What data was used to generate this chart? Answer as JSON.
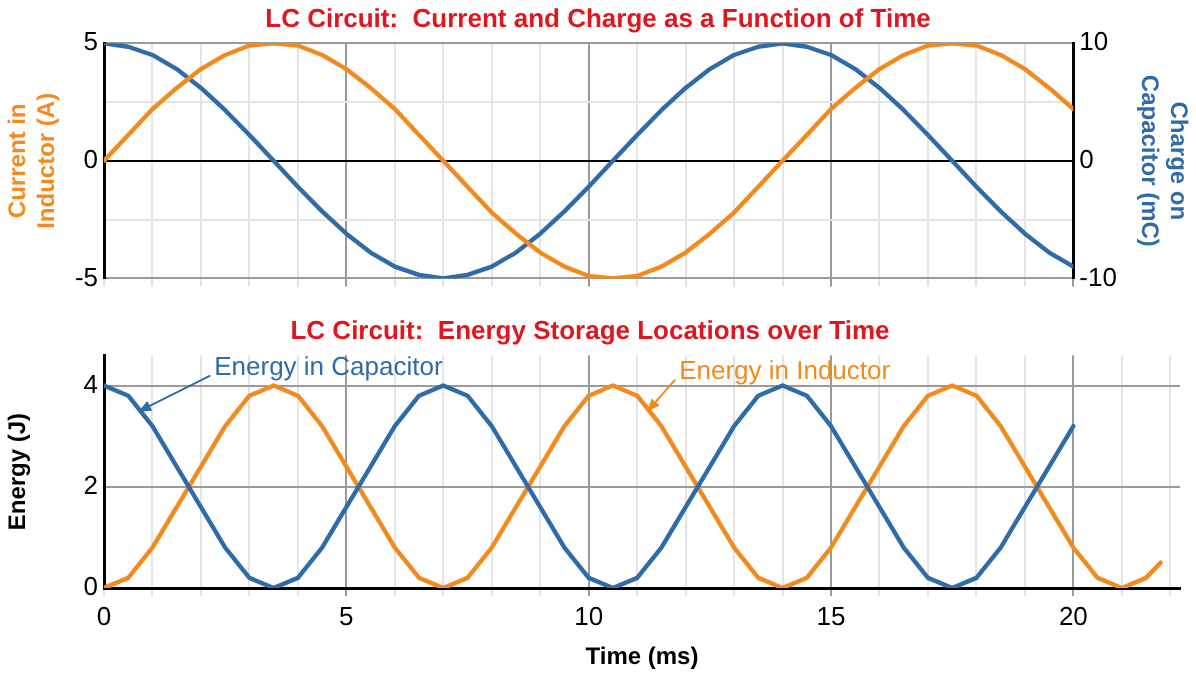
{
  "chart_data": [
    {
      "type": "line",
      "title": "LC Circuit:  Current and Charge as a Function of Time",
      "ylabel": "Current in\nInductor (A)",
      "y2label": "Charge on\nCapacitor (mC)",
      "x": [
        0,
        0.5,
        1,
        1.5,
        2,
        2.5,
        3,
        3.5,
        4,
        4.5,
        5,
        5.5,
        6,
        6.5,
        7,
        7.5,
        8,
        8.5,
        9,
        9.5,
        10,
        10.5,
        11,
        11.5,
        12,
        12.5,
        13,
        13.5,
        14,
        14.5,
        15,
        15.5,
        16,
        16.5,
        17,
        17.5,
        18,
        18.5,
        19,
        19.5,
        20
      ],
      "series": [
        {
          "color": "#f28a1e",
          "values": [
            0,
            1.1,
            2.2,
            3.1,
            3.9,
            4.5,
            4.9,
            5,
            4.9,
            4.5,
            3.9,
            3.1,
            2.2,
            1.1,
            0,
            -1.1,
            -2.2,
            -3.1,
            -3.9,
            -4.5,
            -4.9,
            -5,
            -4.9,
            -4.5,
            -3.9,
            -3.1,
            -2.2,
            -1.1,
            0,
            1.1,
            2.2,
            3.1,
            3.9,
            4.5,
            4.9,
            5,
            4.9,
            4.5,
            3.9,
            3.1,
            2.2
          ]
        },
        {
          "color": "#2f6aa9",
          "axis": "y2",
          "values": [
            10,
            9.7,
            9,
            7.8,
            6.2,
            4.3,
            2.2,
            0,
            -2.2,
            -4.3,
            -6.2,
            -7.8,
            -9,
            -9.7,
            -10,
            -9.7,
            -9,
            -7.8,
            -6.2,
            -4.3,
            -2.2,
            0,
            2.2,
            4.3,
            6.2,
            7.8,
            9,
            9.7,
            10,
            9.7,
            9,
            7.8,
            6.2,
            4.3,
            2.2,
            0,
            -2.2,
            -4.3,
            -6.2,
            -7.8,
            -9
          ]
        }
      ],
      "xlim": [
        0,
        20
      ],
      "xticks": [
        0,
        {
          "value": 1,
          "label": null
        },
        {
          "value": 2,
          "label": null
        },
        {
          "value": 3,
          "label": null
        },
        {
          "value": 4,
          "label": null
        },
        5,
        {
          "value": 6,
          "label": null
        },
        {
          "value": 7,
          "label": null
        },
        {
          "value": 8,
          "label": null
        },
        {
          "value": 9,
          "label": null
        },
        10,
        {
          "value": 11,
          "label": null
        },
        {
          "value": 12,
          "label": null
        },
        {
          "value": 13,
          "label": null
        },
        {
          "value": 14,
          "label": null
        },
        15,
        {
          "value": 16,
          "label": null
        },
        {
          "value": 17,
          "label": null
        },
        {
          "value": 18,
          "label": null
        },
        {
          "value": 19,
          "label": null
        },
        20
      ],
      "ylim": [
        -5,
        5
      ],
      "yticks": [
        -5,
        {
          "value": -2.5,
          "label": null
        },
        0,
        {
          "value": 2.5,
          "label": null
        },
        5
      ],
      "y2lim": [
        -10,
        10
      ],
      "y2ticks": [
        -10,
        0,
        10
      ],
      "tick_labels": "y",
      "grid": true,
      "legend": false,
      "marker": "none",
      "line_style": "solid"
    },
    {
      "type": "line",
      "title": "LC Circuit:  Energy Storage Locations over Time",
      "xlabel": "Time (ms)",
      "ylabel": "Energy (J)",
      "x": [
        0,
        0.5,
        1,
        1.5,
        2,
        2.5,
        3,
        3.5,
        4,
        4.5,
        5,
        5.5,
        6,
        6.5,
        7,
        7.5,
        8,
        8.5,
        9,
        9.5,
        10,
        10.5,
        11,
        11.5,
        12,
        12.5,
        13,
        13.5,
        14,
        14.5,
        15,
        15.5,
        16,
        16.5,
        17,
        17.5,
        18,
        18.5,
        19,
        19.5,
        20
      ],
      "series": [
        {
          "name": "Energy in Capacitor",
          "color": "#2f6aa9",
          "values": [
            4,
            3.8,
            3.2,
            2.4,
            1.6,
            0.8,
            0.2,
            0,
            0.2,
            0.8,
            1.6,
            2.4,
            3.2,
            3.8,
            4,
            3.8,
            3.2,
            2.4,
            1.6,
            0.8,
            0.2,
            0,
            0.2,
            0.8,
            1.6,
            2.4,
            3.2,
            3.8,
            4,
            3.8,
            3.2,
            2.4,
            1.6,
            0.8,
            0.2,
            0,
            0.2,
            0.8,
            1.6,
            2.4,
            3.2
          ]
        },
        {
          "name": "Energy in Inductor",
          "color": "#f28a1e",
          "x": [
            0,
            0.5,
            1,
            1.5,
            2,
            2.5,
            3,
            3.5,
            4,
            4.5,
            5,
            5.5,
            6,
            6.5,
            7,
            7.5,
            8,
            8.5,
            9,
            9.5,
            10,
            10.5,
            11,
            11.5,
            12,
            12.5,
            13,
            13.5,
            14,
            14.5,
            15,
            15.5,
            16,
            16.5,
            17,
            17.5,
            18,
            18.5,
            19,
            19.5,
            20,
            20.5,
            21,
            21.5,
            21.8
          ],
          "values": [
            0,
            0.2,
            0.8,
            1.6,
            2.4,
            3.2,
            3.8,
            4,
            3.8,
            3.2,
            2.4,
            1.6,
            0.8,
            0.2,
            0,
            0.2,
            0.8,
            1.6,
            2.4,
            3.2,
            3.8,
            4,
            3.8,
            3.2,
            2.4,
            1.6,
            0.8,
            0.2,
            0,
            0.2,
            0.8,
            1.6,
            2.4,
            3.2,
            3.8,
            4,
            3.8,
            3.2,
            2.4,
            1.6,
            0.8,
            0.2,
            0,
            0.2,
            0.5
          ]
        }
      ],
      "xlim": [
        0,
        22.2
      ],
      "xticks": [
        0,
        {
          "value": 1,
          "label": null
        },
        {
          "value": 2,
          "label": null
        },
        {
          "value": 3,
          "label": null
        },
        {
          "value": 4,
          "label": null
        },
        5,
        {
          "value": 6,
          "label": null
        },
        {
          "value": 7,
          "label": null
        },
        {
          "value": 8,
          "label": null
        },
        {
          "value": 9,
          "label": null
        },
        10,
        {
          "value": 11,
          "label": null
        },
        {
          "value": 12,
          "label": null
        },
        {
          "value": 13,
          "label": null
        },
        {
          "value": 14,
          "label": null
        },
        15,
        {
          "value": 16,
          "label": null
        },
        {
          "value": 17,
          "label": null
        },
        {
          "value": 18,
          "label": null
        },
        {
          "value": 19,
          "label": null
        },
        20,
        {
          "value": 21,
          "label": null
        },
        {
          "value": 22,
          "label": null
        }
      ],
      "ylim": [
        0,
        4.6
      ],
      "yticks": [
        0,
        2,
        4
      ],
      "grid": true,
      "legend": false,
      "marker": "none",
      "line_style": "solid"
    }
  ]
}
